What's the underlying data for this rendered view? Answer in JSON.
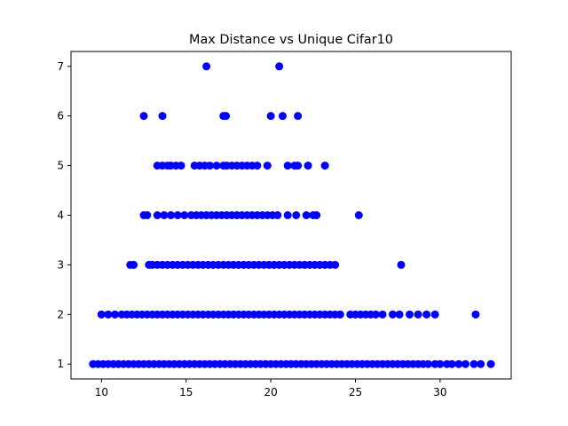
{
  "chart_data": {
    "type": "scatter",
    "title": "Max Distance vs Unique Cifar10",
    "xlabel": "",
    "ylabel": "",
    "xlim": [
      8.2,
      34.2
    ],
    "ylim": [
      0.7,
      7.3
    ],
    "xticks": [
      10,
      15,
      20,
      25,
      30
    ],
    "yticks": [
      1,
      2,
      3,
      4,
      5,
      6,
      7
    ],
    "marker_color": "#0000ff",
    "series": [
      {
        "points": [
          {
            "y": 7,
            "x": [
              16.2,
              20.5
            ]
          },
          {
            "y": 6,
            "x": [
              12.5,
              13.6,
              17.2,
              17.35,
              20.0,
              20.7,
              21.6
            ]
          },
          {
            "y": 5,
            "x": [
              13.3,
              13.6,
              13.9,
              14.1,
              14.4,
              14.7,
              15.5,
              15.8,
              16.1,
              16.4,
              16.8,
              17.2,
              17.4,
              17.7,
              18.0,
              18.3,
              18.6,
              18.9,
              19.2,
              19.8,
              21.0,
              21.4,
              21.6,
              22.2,
              23.2
            ]
          },
          {
            "y": 4,
            "x": [
              12.5,
              12.7,
              13.3,
              13.7,
              14.1,
              14.5,
              14.9,
              15.3,
              15.6,
              15.9,
              16.2,
              16.5,
              16.8,
              17.1,
              17.4,
              17.7,
              18.0,
              18.3,
              18.6,
              18.9,
              19.2,
              19.5,
              19.8,
              20.1,
              20.4,
              21.0,
              21.5,
              22.1,
              22.5,
              22.7,
              25.2
            ]
          },
          {
            "y": 3,
            "x": [
              11.7,
              11.9,
              12.8,
              13.0,
              13.3,
              13.6,
              13.9,
              14.2,
              14.5,
              14.8,
              15.1,
              15.4,
              15.7,
              16.0,
              16.3,
              16.6,
              16.9,
              17.2,
              17.5,
              17.8,
              18.1,
              18.4,
              18.7,
              19.0,
              19.3,
              19.6,
              19.9,
              20.2,
              20.5,
              20.8,
              21.1,
              21.4,
              21.7,
              22.0,
              22.3,
              22.6,
              22.9,
              23.2,
              23.5,
              23.8,
              27.7
            ]
          },
          {
            "y": 2,
            "x": [
              10.0,
              10.4,
              10.8,
              11.2,
              11.5,
              11.8,
              12.1,
              12.4,
              12.7,
              13.0,
              13.3,
              13.6,
              13.9,
              14.2,
              14.5,
              14.8,
              15.1,
              15.4,
              15.7,
              16.0,
              16.3,
              16.6,
              16.9,
              17.2,
              17.5,
              17.8,
              18.1,
              18.4,
              18.7,
              19.0,
              19.3,
              19.6,
              19.9,
              20.2,
              20.5,
              20.8,
              21.1,
              21.4,
              21.7,
              22.0,
              22.3,
              22.6,
              22.9,
              23.2,
              23.5,
              23.8,
              24.1,
              24.7,
              25.0,
              25.3,
              25.6,
              25.9,
              26.2,
              26.6,
              27.2,
              27.6,
              28.2,
              28.7,
              29.2,
              29.7,
              32.1
            ]
          },
          {
            "y": 1,
            "x": [
              9.5,
              9.8,
              10.1,
              10.4,
              10.7,
              11.0,
              11.3,
              11.6,
              11.9,
              12.2,
              12.5,
              12.8,
              13.1,
              13.4,
              13.7,
              14.0,
              14.3,
              14.6,
              14.9,
              15.2,
              15.5,
              15.8,
              16.1,
              16.4,
              16.7,
              17.0,
              17.3,
              17.6,
              17.9,
              18.2,
              18.5,
              18.8,
              19.1,
              19.4,
              19.7,
              20.0,
              20.3,
              20.6,
              20.9,
              21.2,
              21.5,
              21.8,
              22.1,
              22.4,
              22.7,
              23.0,
              23.3,
              23.6,
              23.9,
              24.2,
              24.5,
              24.8,
              25.1,
              25.4,
              25.7,
              26.0,
              26.3,
              26.6,
              26.9,
              27.2,
              27.5,
              27.8,
              28.1,
              28.4,
              28.7,
              29.0,
              29.3,
              29.7,
              30.0,
              30.4,
              30.7,
              31.1,
              31.5,
              32.0,
              32.4,
              33.0
            ]
          }
        ]
      }
    ]
  }
}
